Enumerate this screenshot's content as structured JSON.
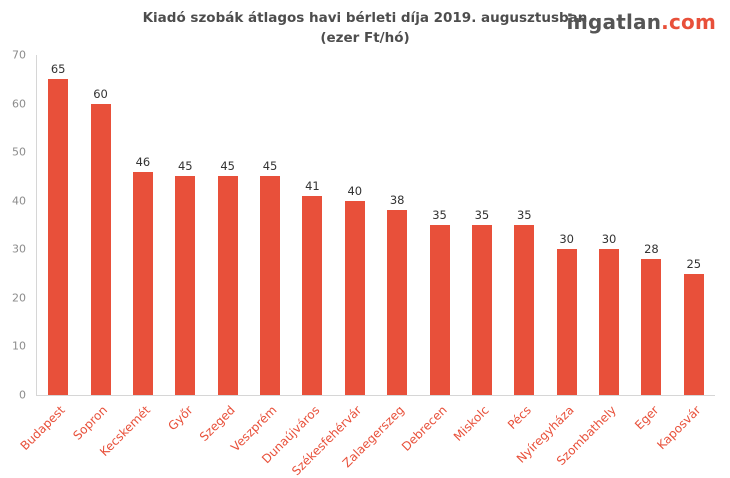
{
  "logo": {
    "name": "ingatlan",
    "tld": ".com",
    "name_color": "#555555",
    "tld_color": "#e8503a"
  },
  "chart_data": {
    "type": "bar",
    "title": "Kiadó szobák átlagos havi bérleti díja 2019. augusztusban",
    "subtitle": "(ezer Ft/hó)",
    "categories": [
      "Budapest",
      "Sopron",
      "Kecskemét",
      "Győr",
      "Szeged",
      "Veszprém",
      "Dunaújváros",
      "Székesfehérvár",
      "Zalaegerszeg",
      "Debrecen",
      "Miskolc",
      "Pécs",
      "Nyíregyháza",
      "Szombathely",
      "Eger",
      "Kaposvár"
    ],
    "values": [
      65,
      60,
      46,
      45,
      45,
      45,
      41,
      40,
      38,
      35,
      35,
      35,
      30,
      30,
      28,
      25
    ],
    "xlabel": "",
    "ylabel": "",
    "ylim": [
      0,
      70
    ],
    "yticks": [
      0,
      10,
      20,
      30,
      40,
      50,
      60,
      70
    ],
    "grid": false,
    "legend": "none",
    "bar_color": "#e8503a",
    "xlabel_color": "#e8503a",
    "value_label_color": "#333333",
    "ytick_color": "#8c8c8c",
    "axis_color": "#d6d6d6",
    "title_color": "#4d4d4d"
  }
}
